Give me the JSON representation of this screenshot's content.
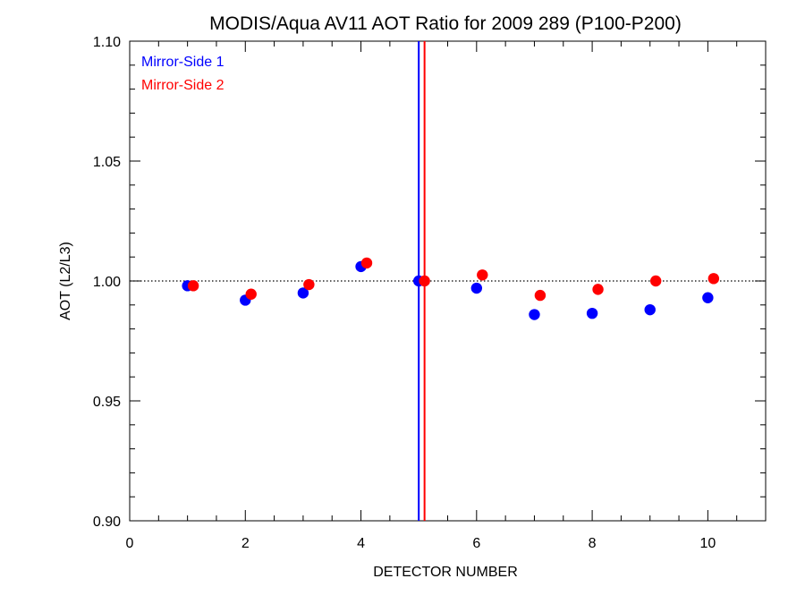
{
  "chart_data": {
    "type": "scatter",
    "title": "MODIS/Aqua AV11 AOT Ratio for 2009 289 (P100-P200)",
    "xlabel": "DETECTOR NUMBER",
    "ylabel": "AOT (L2/L3)",
    "xlim": [
      0,
      11
    ],
    "ylim": [
      0.9,
      1.1
    ],
    "x_ticks": [
      0,
      2,
      4,
      6,
      8,
      10
    ],
    "x_tick_labels": [
      "0",
      "2",
      "4",
      "6",
      "8",
      "10"
    ],
    "y_ticks": [
      0.9,
      0.95,
      1.0,
      1.05,
      1.1
    ],
    "y_tick_labels": [
      "0.90",
      "0.95",
      "1.00",
      "1.05",
      "1.10"
    ],
    "reference_line_y": 1.0,
    "legend_position": "top-left",
    "series": [
      {
        "name": "Mirror-Side 1",
        "color": "#0000ff",
        "x": [
          1,
          2,
          3,
          4,
          5,
          6,
          7,
          8,
          9,
          10
        ],
        "y": [
          0.998,
          0.992,
          0.995,
          1.006,
          1.0,
          0.997,
          0.986,
          0.9865,
          0.988,
          0.993
        ],
        "vertical_line_x": 5.0
      },
      {
        "name": "Mirror-Side 2",
        "color": "#ff0000",
        "x": [
          1.1,
          2.1,
          3.1,
          4.1,
          5.1,
          6.1,
          7.1,
          8.1,
          9.1,
          10.1
        ],
        "y": [
          0.998,
          0.9945,
          0.9985,
          1.0075,
          1.0,
          1.0025,
          0.994,
          0.9965,
          1.0,
          1.001
        ],
        "vertical_line_x": 5.1
      }
    ]
  }
}
